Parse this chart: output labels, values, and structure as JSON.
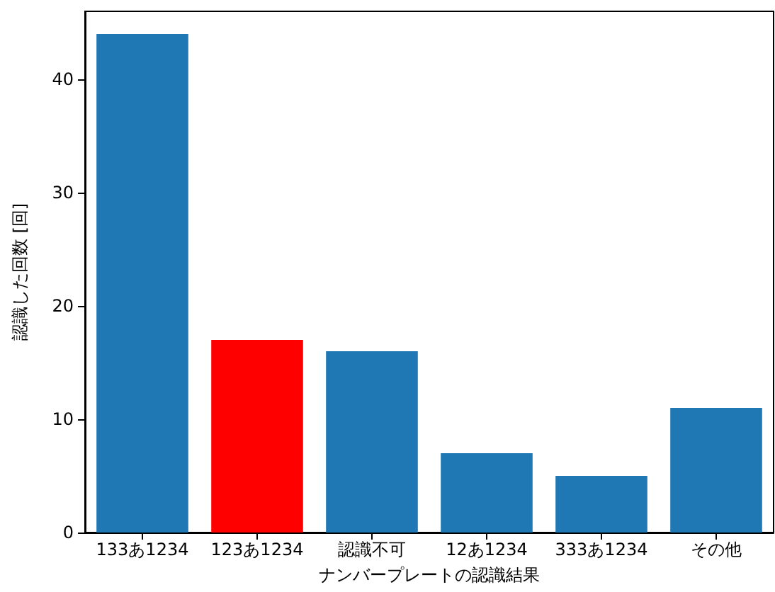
{
  "chart_data": {
    "type": "bar",
    "xlabel": "ナンバープレートの認識結果",
    "ylabel": "認識した回数 [回]",
    "categories": [
      "133あ1234",
      "123あ1234",
      "認識不可",
      "12あ1234",
      "333あ1234",
      "その他"
    ],
    "values": [
      44,
      17,
      16,
      7,
      5,
      11
    ],
    "colors": [
      "#1f77b4",
      "#ff0000",
      "#1f77b4",
      "#1f77b4",
      "#1f77b4",
      "#1f77b4"
    ],
    "ylim": [
      0,
      46
    ],
    "yticks": [
      0,
      10,
      20,
      30,
      40
    ],
    "grid": false
  }
}
